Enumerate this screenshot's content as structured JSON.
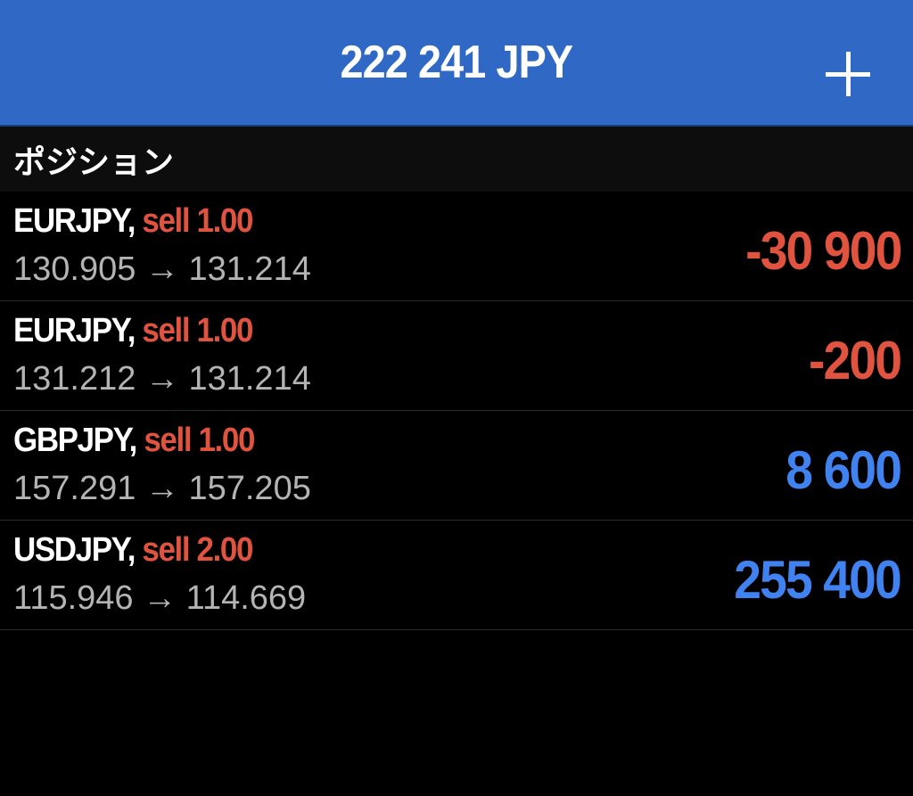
{
  "header": {
    "title": "222 241 JPY",
    "add_icon": "plus-icon"
  },
  "section": {
    "title": "ポジション"
  },
  "colors": {
    "header_bg": "#2f69c5",
    "loss": "#e0533f",
    "profit": "#3f82f0"
  },
  "positions": [
    {
      "symbol": "EURJPY,",
      "side": "sell 1.00",
      "prices": "130.905 → 131.214",
      "profit": "-30 900",
      "color": "#e0533f"
    },
    {
      "symbol": "EURJPY,",
      "side": "sell 1.00",
      "prices": "131.212 → 131.214",
      "profit": "-200",
      "color": "#e0533f"
    },
    {
      "symbol": "GBPJPY,",
      "side": "sell 1.00",
      "prices": "157.291 → 157.205",
      "profit": "8 600",
      "color": "#3f82f0"
    },
    {
      "symbol": "USDJPY,",
      "side": "sell 2.00",
      "prices": "115.946 → 114.669",
      "profit": "255 400",
      "color": "#3f82f0"
    }
  ]
}
